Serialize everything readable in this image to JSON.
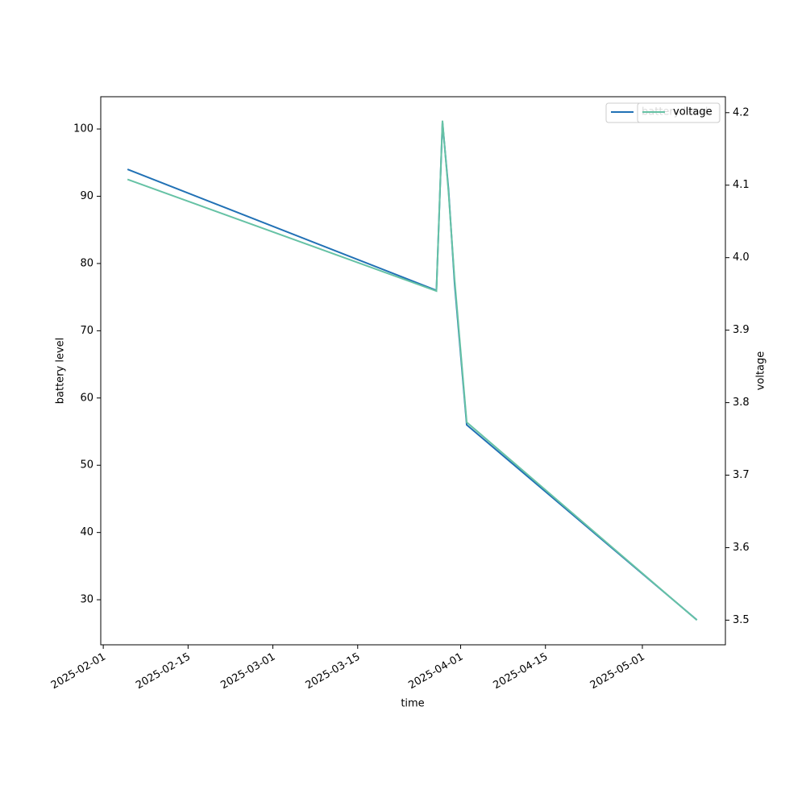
{
  "chart_data": {
    "type": "line",
    "x_label": "time",
    "y_label": "battery level",
    "y2_label": "voltage",
    "x": [
      "2025-02-05",
      "2025-03-28",
      "2025-03-29",
      "2025-03-30",
      "2025-03-31",
      "2025-04-02",
      "2025-05-10"
    ],
    "series": [
      {
        "name": "battery level",
        "color": "#2171b5",
        "values": [
          94,
          76,
          101,
          91,
          77,
          56,
          27
        ]
      },
      {
        "name": "voltage",
        "color": "#66c2a5",
        "axis": "y2",
        "values": [
          4.108,
          3.954,
          4.189,
          4.09,
          3.97,
          3.773,
          3.5
        ]
      }
    ],
    "xlim": [
      "2025-01-31T14:00:00Z",
      "2025-05-14T17:00:00Z"
    ],
    "xticks": [
      "2025-02-01",
      "2025-02-15",
      "2025-03-01",
      "2025-03-15",
      "2025-04-01",
      "2025-04-15",
      "2025-05-01"
    ],
    "ylim": [
      23.3,
      104.8
    ],
    "yticks": [
      30,
      40,
      50,
      60,
      70,
      80,
      90,
      100
    ],
    "y2lim": [
      3.466,
      4.222
    ],
    "y2ticks": [
      3.5,
      3.6,
      3.7,
      3.8,
      3.9,
      4.0,
      4.1,
      4.2
    ],
    "legend": "upper right",
    "grid": false
  }
}
